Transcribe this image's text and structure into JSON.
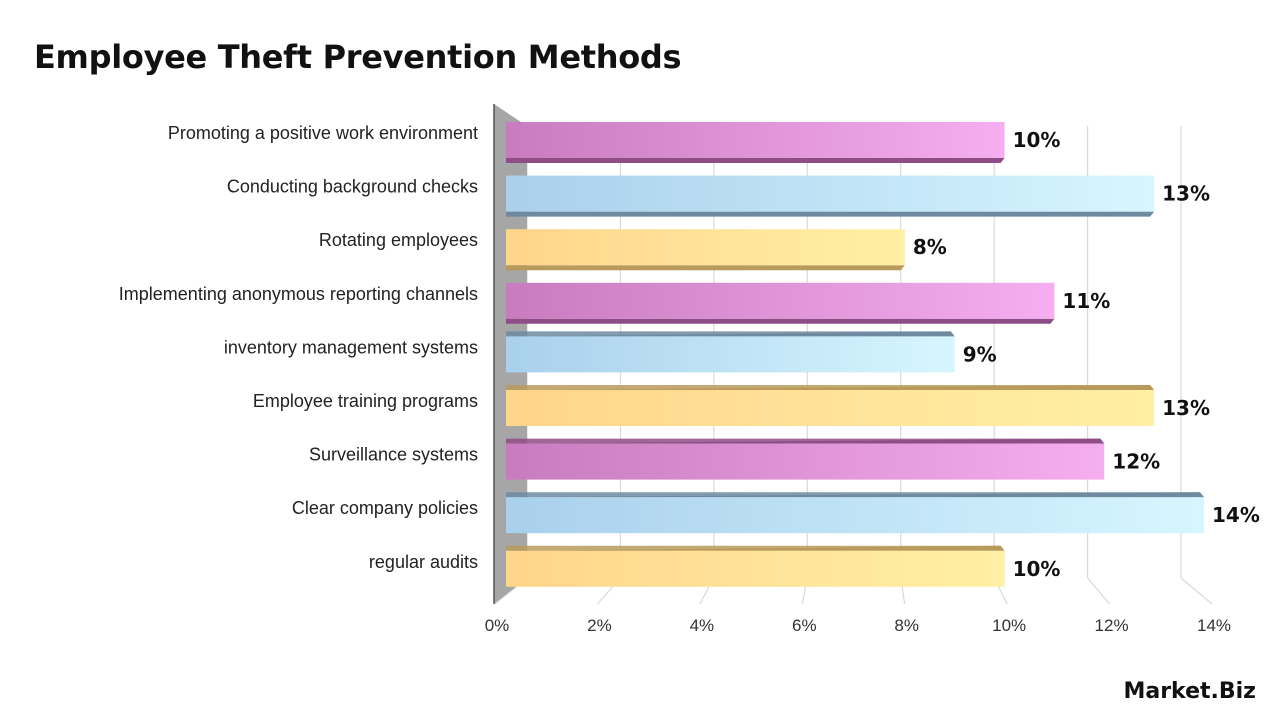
{
  "title": "Employee Theft Prevention Methods",
  "logo_text": "Market.Biz",
  "colors": {
    "pink": [
      "#c97bbf",
      "#f5aef0"
    ],
    "blue": [
      "#a9d0ec",
      "#d6f6ff"
    ],
    "yellow": [
      "#ffd58a",
      "#fff0a6"
    ],
    "axis_wall": "#a6a6a6",
    "grid": "#d9d9d9"
  },
  "chart_data": {
    "type": "bar",
    "orientation": "horizontal",
    "title": "Employee Theft Prevention Methods",
    "categories": [
      "Promoting a positive work environment",
      "Conducting background checks",
      "Rotating employees",
      "Implementing anonymous reporting channels",
      "inventory management systems",
      "Employee training programs",
      "Surveillance systems",
      "Clear company policies",
      "regular audits"
    ],
    "values": [
      10,
      13,
      8,
      11,
      9,
      13,
      12,
      14,
      10
    ],
    "data_labels": [
      "10%",
      "13%",
      "8%",
      "11%",
      "9%",
      "13%",
      "12%",
      "14%",
      "10%"
    ],
    "bar_colors": [
      "pink",
      "blue",
      "yellow",
      "pink",
      "blue",
      "yellow",
      "pink",
      "blue",
      "yellow"
    ],
    "xlim": [
      0,
      14
    ],
    "x_ticks": [
      "0%",
      "2%",
      "4%",
      "6%",
      "8%",
      "10%",
      "12%",
      "14%"
    ],
    "grid": true,
    "legend": "none"
  }
}
